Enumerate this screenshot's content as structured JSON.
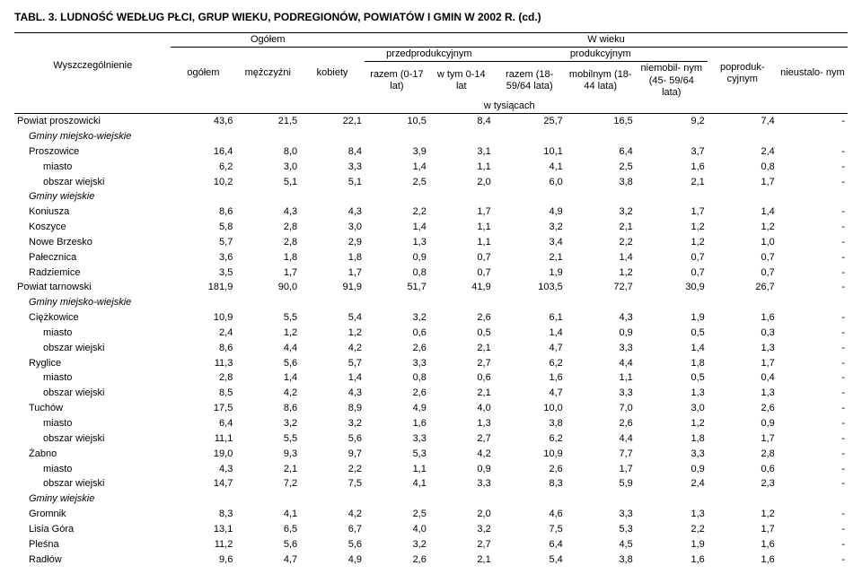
{
  "title": "TABL. 3. LUDNOŚĆ WEDŁUG PŁCI, GRUP WIEKU, PODREGIONÓW, POWIATÓW I GMIN W 2002 R. (cd.)",
  "headers": {
    "wyszczegolnienie": "Wyszczególnienie",
    "ogolem_group": "Ogółem",
    "ogolem": "ogółem",
    "mezczyzni": "mężczyźni",
    "kobiety": "kobiety",
    "wwieku": "W wieku",
    "przedprod": "przedprodukcyjnym",
    "prod": "produkcyjnym",
    "razem017": "razem (0-17 lat)",
    "wtym014": "w tym 0-14 lat",
    "razem1859": "razem (18-59/64 lata)",
    "mobilnym": "mobilnym (18-44 lata)",
    "niemobil": "niemobil- nym (45- 59/64 lata)",
    "poproduk": "poproduk- cyjnym",
    "nieustalo": "nieustalo- nym",
    "wtysiacach": "w tysiącach"
  },
  "rows": [
    {
      "label": "Powiat proszowicki",
      "indent": 0,
      "bold": false,
      "vals": [
        "43,6",
        "21,5",
        "22,1",
        "10,5",
        "8,4",
        "25,7",
        "16,5",
        "9,2",
        "7,4",
        "-"
      ]
    },
    {
      "label": "Gminy miejsko-wiejskie",
      "indent": 1,
      "italic": true,
      "vals": null
    },
    {
      "label": "Proszowice",
      "indent": 1,
      "vals": [
        "16,4",
        "8,0",
        "8,4",
        "3,9",
        "3,1",
        "10,1",
        "6,4",
        "3,7",
        "2,4",
        "-"
      ]
    },
    {
      "label": "miasto",
      "indent": 2,
      "vals": [
        "6,2",
        "3,0",
        "3,3",
        "1,4",
        "1,1",
        "4,1",
        "2,5",
        "1,6",
        "0,8",
        "-"
      ]
    },
    {
      "label": "obszar wiejski",
      "indent": 2,
      "vals": [
        "10,2",
        "5,1",
        "5,1",
        "2,5",
        "2,0",
        "6,0",
        "3,8",
        "2,1",
        "1,7",
        "-"
      ]
    },
    {
      "label": "Gminy wiejskie",
      "indent": 1,
      "italic": true,
      "vals": null
    },
    {
      "label": "Koniusza",
      "indent": 1,
      "vals": [
        "8,6",
        "4,3",
        "4,3",
        "2,2",
        "1,7",
        "4,9",
        "3,2",
        "1,7",
        "1,4",
        "-"
      ]
    },
    {
      "label": "Koszyce",
      "indent": 1,
      "vals": [
        "5,8",
        "2,8",
        "3,0",
        "1,4",
        "1,1",
        "3,2",
        "2,1",
        "1,2",
        "1,2",
        "-"
      ]
    },
    {
      "label": "Nowe Brzesko",
      "indent": 1,
      "vals": [
        "5,7",
        "2,8",
        "2,9",
        "1,3",
        "1,1",
        "3,4",
        "2,2",
        "1,2",
        "1,0",
        "-"
      ]
    },
    {
      "label": "Pałecznica",
      "indent": 1,
      "vals": [
        "3,6",
        "1,8",
        "1,8",
        "0,9",
        "0,7",
        "2,1",
        "1,4",
        "0,7",
        "0,7",
        "-"
      ]
    },
    {
      "label": "Radziemice",
      "indent": 1,
      "vals": [
        "3,5",
        "1,7",
        "1,7",
        "0,8",
        "0,7",
        "1,9",
        "1,2",
        "0,7",
        "0,7",
        "-"
      ]
    },
    {
      "label": "Powiat tarnowski",
      "indent": 0,
      "vals": [
        "181,9",
        "90,0",
        "91,9",
        "51,7",
        "41,9",
        "103,5",
        "72,7",
        "30,9",
        "26,7",
        "-"
      ]
    },
    {
      "label": "Gminy miejsko-wiejskie",
      "indent": 1,
      "italic": true,
      "vals": null
    },
    {
      "label": "Ciężkowice",
      "indent": 1,
      "vals": [
        "10,9",
        "5,5",
        "5,4",
        "3,2",
        "2,6",
        "6,1",
        "4,3",
        "1,9",
        "1,6",
        "-"
      ]
    },
    {
      "label": "miasto",
      "indent": 2,
      "vals": [
        "2,4",
        "1,2",
        "1,2",
        "0,6",
        "0,5",
        "1,4",
        "0,9",
        "0,5",
        "0,3",
        "-"
      ]
    },
    {
      "label": "obszar wiejski",
      "indent": 2,
      "vals": [
        "8,6",
        "4,4",
        "4,2",
        "2,6",
        "2,1",
        "4,7",
        "3,3",
        "1,4",
        "1,3",
        "-"
      ]
    },
    {
      "label": "Ryglice",
      "indent": 1,
      "vals": [
        "11,3",
        "5,6",
        "5,7",
        "3,3",
        "2,7",
        "6,2",
        "4,4",
        "1,8",
        "1,7",
        "-"
      ]
    },
    {
      "label": "miasto",
      "indent": 2,
      "vals": [
        "2,8",
        "1,4",
        "1,4",
        "0,8",
        "0,6",
        "1,6",
        "1,1",
        "0,5",
        "0,4",
        "-"
      ]
    },
    {
      "label": "obszar wiejski",
      "indent": 2,
      "vals": [
        "8,5",
        "4,2",
        "4,3",
        "2,6",
        "2,1",
        "4,7",
        "3,3",
        "1,3",
        "1,3",
        "-"
      ]
    },
    {
      "label": "Tuchów",
      "indent": 1,
      "vals": [
        "17,5",
        "8,6",
        "8,9",
        "4,9",
        "4,0",
        "10,0",
        "7,0",
        "3,0",
        "2,6",
        "-"
      ]
    },
    {
      "label": "miasto",
      "indent": 2,
      "vals": [
        "6,4",
        "3,2",
        "3,2",
        "1,6",
        "1,3",
        "3,8",
        "2,6",
        "1,2",
        "0,9",
        "-"
      ]
    },
    {
      "label": "obszar wiejski",
      "indent": 2,
      "vals": [
        "11,1",
        "5,5",
        "5,6",
        "3,3",
        "2,7",
        "6,2",
        "4,4",
        "1,8",
        "1,7",
        "-"
      ]
    },
    {
      "label": "Żabno",
      "indent": 1,
      "vals": [
        "19,0",
        "9,3",
        "9,7",
        "5,3",
        "4,2",
        "10,9",
        "7,7",
        "3,3",
        "2,8",
        "-"
      ]
    },
    {
      "label": "miasto",
      "indent": 2,
      "vals": [
        "4,3",
        "2,1",
        "2,2",
        "1,1",
        "0,9",
        "2,6",
        "1,7",
        "0,9",
        "0,6",
        "-"
      ]
    },
    {
      "label": "obszar wiejski",
      "indent": 2,
      "vals": [
        "14,7",
        "7,2",
        "7,5",
        "4,1",
        "3,3",
        "8,3",
        "5,9",
        "2,4",
        "2,3",
        "-"
      ]
    },
    {
      "label": "Gminy wiejskie",
      "indent": 1,
      "italic": true,
      "vals": null
    },
    {
      "label": "Gromnik",
      "indent": 1,
      "vals": [
        "8,3",
        "4,1",
        "4,2",
        "2,5",
        "2,0",
        "4,6",
        "3,3",
        "1,3",
        "1,2",
        "-"
      ]
    },
    {
      "label": "Lisia Góra",
      "indent": 1,
      "vals": [
        "13,1",
        "6,5",
        "6,7",
        "4,0",
        "3,2",
        "7,5",
        "5,3",
        "2,2",
        "1,7",
        "-"
      ]
    },
    {
      "label": "Pleśna",
      "indent": 1,
      "vals": [
        "11,2",
        "5,6",
        "5,6",
        "3,2",
        "2,7",
        "6,4",
        "4,5",
        "1,9",
        "1,6",
        "-"
      ]
    },
    {
      "label": "Radłów",
      "indent": 1,
      "vals": [
        "9,6",
        "4,7",
        "4,9",
        "2,6",
        "2,1",
        "5,4",
        "3,8",
        "1,6",
        "1,6",
        "-"
      ]
    }
  ],
  "colWidths": [
    "170px",
    "70px",
    "70px",
    "70px",
    "70px",
    "70px",
    "78px",
    "76px",
    "78px",
    "76px",
    "76px"
  ]
}
